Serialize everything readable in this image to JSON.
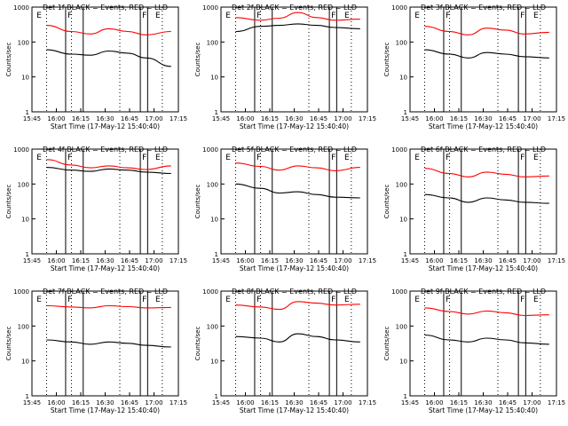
{
  "figure": {
    "ylabel": "Counts/sec",
    "xlabel": "Start Time (17-May-12 15:40:40)",
    "x_tick_labels": [
      "15:45",
      "16:00",
      "16:15",
      "16:30",
      "16:45",
      "17:00",
      "17:15"
    ],
    "y_tick_labels": [
      "1",
      "10",
      "100",
      "1000"
    ],
    "colors": {
      "events": "#000000",
      "lld": "#ff0000"
    },
    "period_labels": [
      "E",
      "F",
      "F",
      "E"
    ]
  },
  "chart_data": [
    {
      "type": "line",
      "title": "Det 1f BLACK = Events, RED = LLD",
      "yscale": "log",
      "ylim": [
        1,
        1000
      ],
      "series": [
        {
          "name": "Events",
          "points": [
            [
              0,
              60
            ],
            [
              0.2,
              45
            ],
            [
              0.35,
              42
            ],
            [
              0.5,
              55
            ],
            [
              0.65,
              48
            ],
            [
              0.8,
              35
            ],
            [
              1.0,
              20
            ]
          ]
        },
        {
          "name": "LLD",
          "points": [
            [
              0,
              300
            ],
            [
              0.2,
              200
            ],
            [
              0.35,
              170
            ],
            [
              0.5,
              240
            ],
            [
              0.65,
              200
            ],
            [
              0.8,
              160
            ],
            [
              1.0,
              200
            ]
          ]
        }
      ]
    },
    {
      "type": "line",
      "title": "Det 2f BLACK = Events, RED = LLD",
      "yscale": "log",
      "ylim": [
        1,
        1000
      ],
      "series": [
        {
          "name": "Events",
          "points": [
            [
              0,
              200
            ],
            [
              0.2,
              280
            ],
            [
              0.35,
              300
            ],
            [
              0.5,
              330
            ],
            [
              0.65,
              300
            ],
            [
              0.8,
              260
            ],
            [
              1.0,
              240
            ]
          ]
        },
        {
          "name": "LLD",
          "points": [
            [
              0,
              500
            ],
            [
              0.2,
              420
            ],
            [
              0.35,
              480
            ],
            [
              0.5,
              700
            ],
            [
              0.65,
              500
            ],
            [
              0.8,
              420
            ],
            [
              1.0,
              450
            ]
          ]
        }
      ]
    },
    {
      "type": "line",
      "title": "Det 3f BLACK = Events, RED = LLD",
      "yscale": "log",
      "ylim": [
        1,
        1000
      ],
      "series": [
        {
          "name": "Events",
          "points": [
            [
              0,
              60
            ],
            [
              0.2,
              45
            ],
            [
              0.35,
              35
            ],
            [
              0.5,
              50
            ],
            [
              0.65,
              45
            ],
            [
              0.8,
              38
            ],
            [
              1.0,
              35
            ]
          ]
        },
        {
          "name": "LLD",
          "points": [
            [
              0,
              280
            ],
            [
              0.2,
              200
            ],
            [
              0.35,
              160
            ],
            [
              0.5,
              250
            ],
            [
              0.65,
              220
            ],
            [
              0.8,
              170
            ],
            [
              1.0,
              190
            ]
          ]
        }
      ]
    },
    {
      "type": "line",
      "title": "Det 4f BLACK = Events, RED = LLD",
      "yscale": "log",
      "ylim": [
        1,
        1000
      ],
      "series": [
        {
          "name": "Events",
          "points": [
            [
              0,
              300
            ],
            [
              0.2,
              250
            ],
            [
              0.35,
              230
            ],
            [
              0.5,
              270
            ],
            [
              0.65,
              250
            ],
            [
              0.8,
              220
            ],
            [
              1.0,
              200
            ]
          ]
        },
        {
          "name": "LLD",
          "points": [
            [
              0,
              500
            ],
            [
              0.2,
              350
            ],
            [
              0.35,
              290
            ],
            [
              0.5,
              330
            ],
            [
              0.65,
              290
            ],
            [
              0.8,
              260
            ],
            [
              1.0,
              330
            ]
          ]
        }
      ]
    },
    {
      "type": "line",
      "title": "Det 5f BLACK = Events, RED = LLD",
      "yscale": "log",
      "ylim": [
        1,
        1000
      ],
      "series": [
        {
          "name": "Events",
          "points": [
            [
              0,
              100
            ],
            [
              0.2,
              75
            ],
            [
              0.35,
              55
            ],
            [
              0.5,
              60
            ],
            [
              0.65,
              50
            ],
            [
              0.8,
              42
            ],
            [
              1.0,
              40
            ]
          ]
        },
        {
          "name": "LLD",
          "points": [
            [
              0,
              400
            ],
            [
              0.2,
              320
            ],
            [
              0.35,
              250
            ],
            [
              0.5,
              330
            ],
            [
              0.65,
              290
            ],
            [
              0.8,
              240
            ],
            [
              1.0,
              300
            ]
          ]
        }
      ]
    },
    {
      "type": "line",
      "title": "Det 6f BLACK = Events, RED = LLD",
      "yscale": "log",
      "ylim": [
        1,
        1000
      ],
      "series": [
        {
          "name": "Events",
          "points": [
            [
              0,
              50
            ],
            [
              0.2,
              40
            ],
            [
              0.35,
              30
            ],
            [
              0.5,
              40
            ],
            [
              0.65,
              35
            ],
            [
              0.8,
              30
            ],
            [
              1.0,
              28
            ]
          ]
        },
        {
          "name": "LLD",
          "points": [
            [
              0,
              280
            ],
            [
              0.2,
              200
            ],
            [
              0.35,
              160
            ],
            [
              0.5,
              220
            ],
            [
              0.65,
              190
            ],
            [
              0.8,
              160
            ],
            [
              1.0,
              170
            ]
          ]
        }
      ]
    },
    {
      "type": "line",
      "title": "Det 7f BLACK = Events, RED = LLD",
      "yscale": "log",
      "ylim": [
        1,
        1000
      ],
      "series": [
        {
          "name": "Events",
          "points": [
            [
              0,
              40
            ],
            [
              0.2,
              35
            ],
            [
              0.35,
              30
            ],
            [
              0.5,
              35
            ],
            [
              0.65,
              32
            ],
            [
              0.8,
              28
            ],
            [
              1.0,
              25
            ]
          ]
        },
        {
          "name": "LLD",
          "points": [
            [
              0,
              380
            ],
            [
              0.2,
              350
            ],
            [
              0.35,
              330
            ],
            [
              0.5,
              380
            ],
            [
              0.65,
              360
            ],
            [
              0.8,
              330
            ],
            [
              1.0,
              340
            ]
          ]
        }
      ]
    },
    {
      "type": "line",
      "title": "Det 8f BLACK = Events, RED = LLD",
      "yscale": "log",
      "ylim": [
        1,
        1000
      ],
      "series": [
        {
          "name": "Events",
          "points": [
            [
              0,
              50
            ],
            [
              0.2,
              45
            ],
            [
              0.35,
              35
            ],
            [
              0.5,
              60
            ],
            [
              0.65,
              50
            ],
            [
              0.8,
              40
            ],
            [
              1.0,
              35
            ]
          ]
        },
        {
          "name": "LLD",
          "points": [
            [
              0,
              400
            ],
            [
              0.2,
              350
            ],
            [
              0.35,
              300
            ],
            [
              0.5,
              500
            ],
            [
              0.65,
              450
            ],
            [
              0.8,
              400
            ],
            [
              1.0,
              420
            ]
          ]
        }
      ]
    },
    {
      "type": "line",
      "title": "Det 9f BLACK = Events, RED = LLD",
      "yscale": "log",
      "ylim": [
        1,
        1000
      ],
      "series": [
        {
          "name": "Events",
          "points": [
            [
              0,
              55
            ],
            [
              0.2,
              40
            ],
            [
              0.35,
              35
            ],
            [
              0.5,
              45
            ],
            [
              0.65,
              40
            ],
            [
              0.8,
              33
            ],
            [
              1.0,
              30
            ]
          ]
        },
        {
          "name": "LLD",
          "points": [
            [
              0,
              330
            ],
            [
              0.2,
              260
            ],
            [
              0.35,
              220
            ],
            [
              0.5,
              270
            ],
            [
              0.65,
              240
            ],
            [
              0.8,
              200
            ],
            [
              1.0,
              210
            ]
          ]
        }
      ]
    }
  ]
}
